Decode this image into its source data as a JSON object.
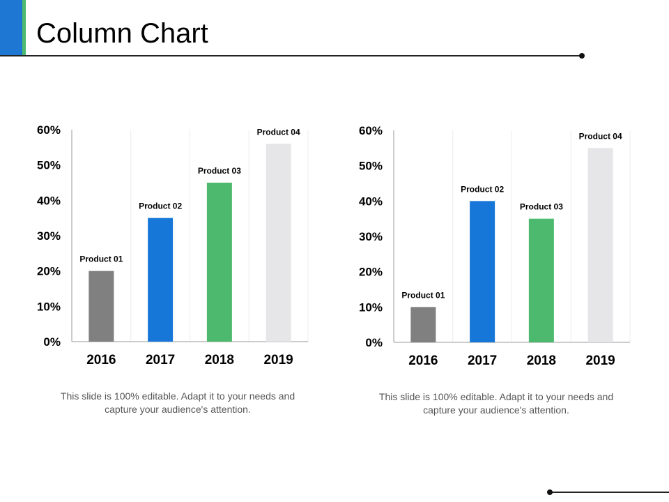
{
  "slide": {
    "title": "Column Chart",
    "captions": [
      "This slide is 100% editable. Adapt it to your needs and capture your audience's attention.",
      "This slide is 100% editable. Adapt it to your needs and capture your audience's attention."
    ]
  },
  "chart_data": [
    {
      "type": "bar",
      "categories": [
        "2016",
        "2017",
        "2018",
        "2019"
      ],
      "values": [
        20,
        35,
        45,
        56
      ],
      "data_labels": [
        "Product 01",
        "Product 02",
        "Product 03",
        "Product 04"
      ],
      "bar_colors": [
        "#808080",
        "#1777d8",
        "#4db96e",
        "#e6e6e8"
      ],
      "yticks": [
        "0%",
        "10%",
        "20%",
        "30%",
        "40%",
        "50%",
        "60%"
      ],
      "ylim": [
        0,
        60
      ],
      "grid": "vertical"
    },
    {
      "type": "bar",
      "categories": [
        "2016",
        "2017",
        "2018",
        "2019"
      ],
      "values": [
        10,
        40,
        35,
        55
      ],
      "data_labels": [
        "Product 01",
        "Product 02",
        "Product 03",
        "Product 04"
      ],
      "bar_colors": [
        "#808080",
        "#1777d8",
        "#4db96e",
        "#e6e6e8"
      ],
      "yticks": [
        "0%",
        "10%",
        "20%",
        "30%",
        "40%",
        "50%",
        "60%"
      ],
      "ylim": [
        0,
        60
      ],
      "grid": "vertical"
    }
  ]
}
